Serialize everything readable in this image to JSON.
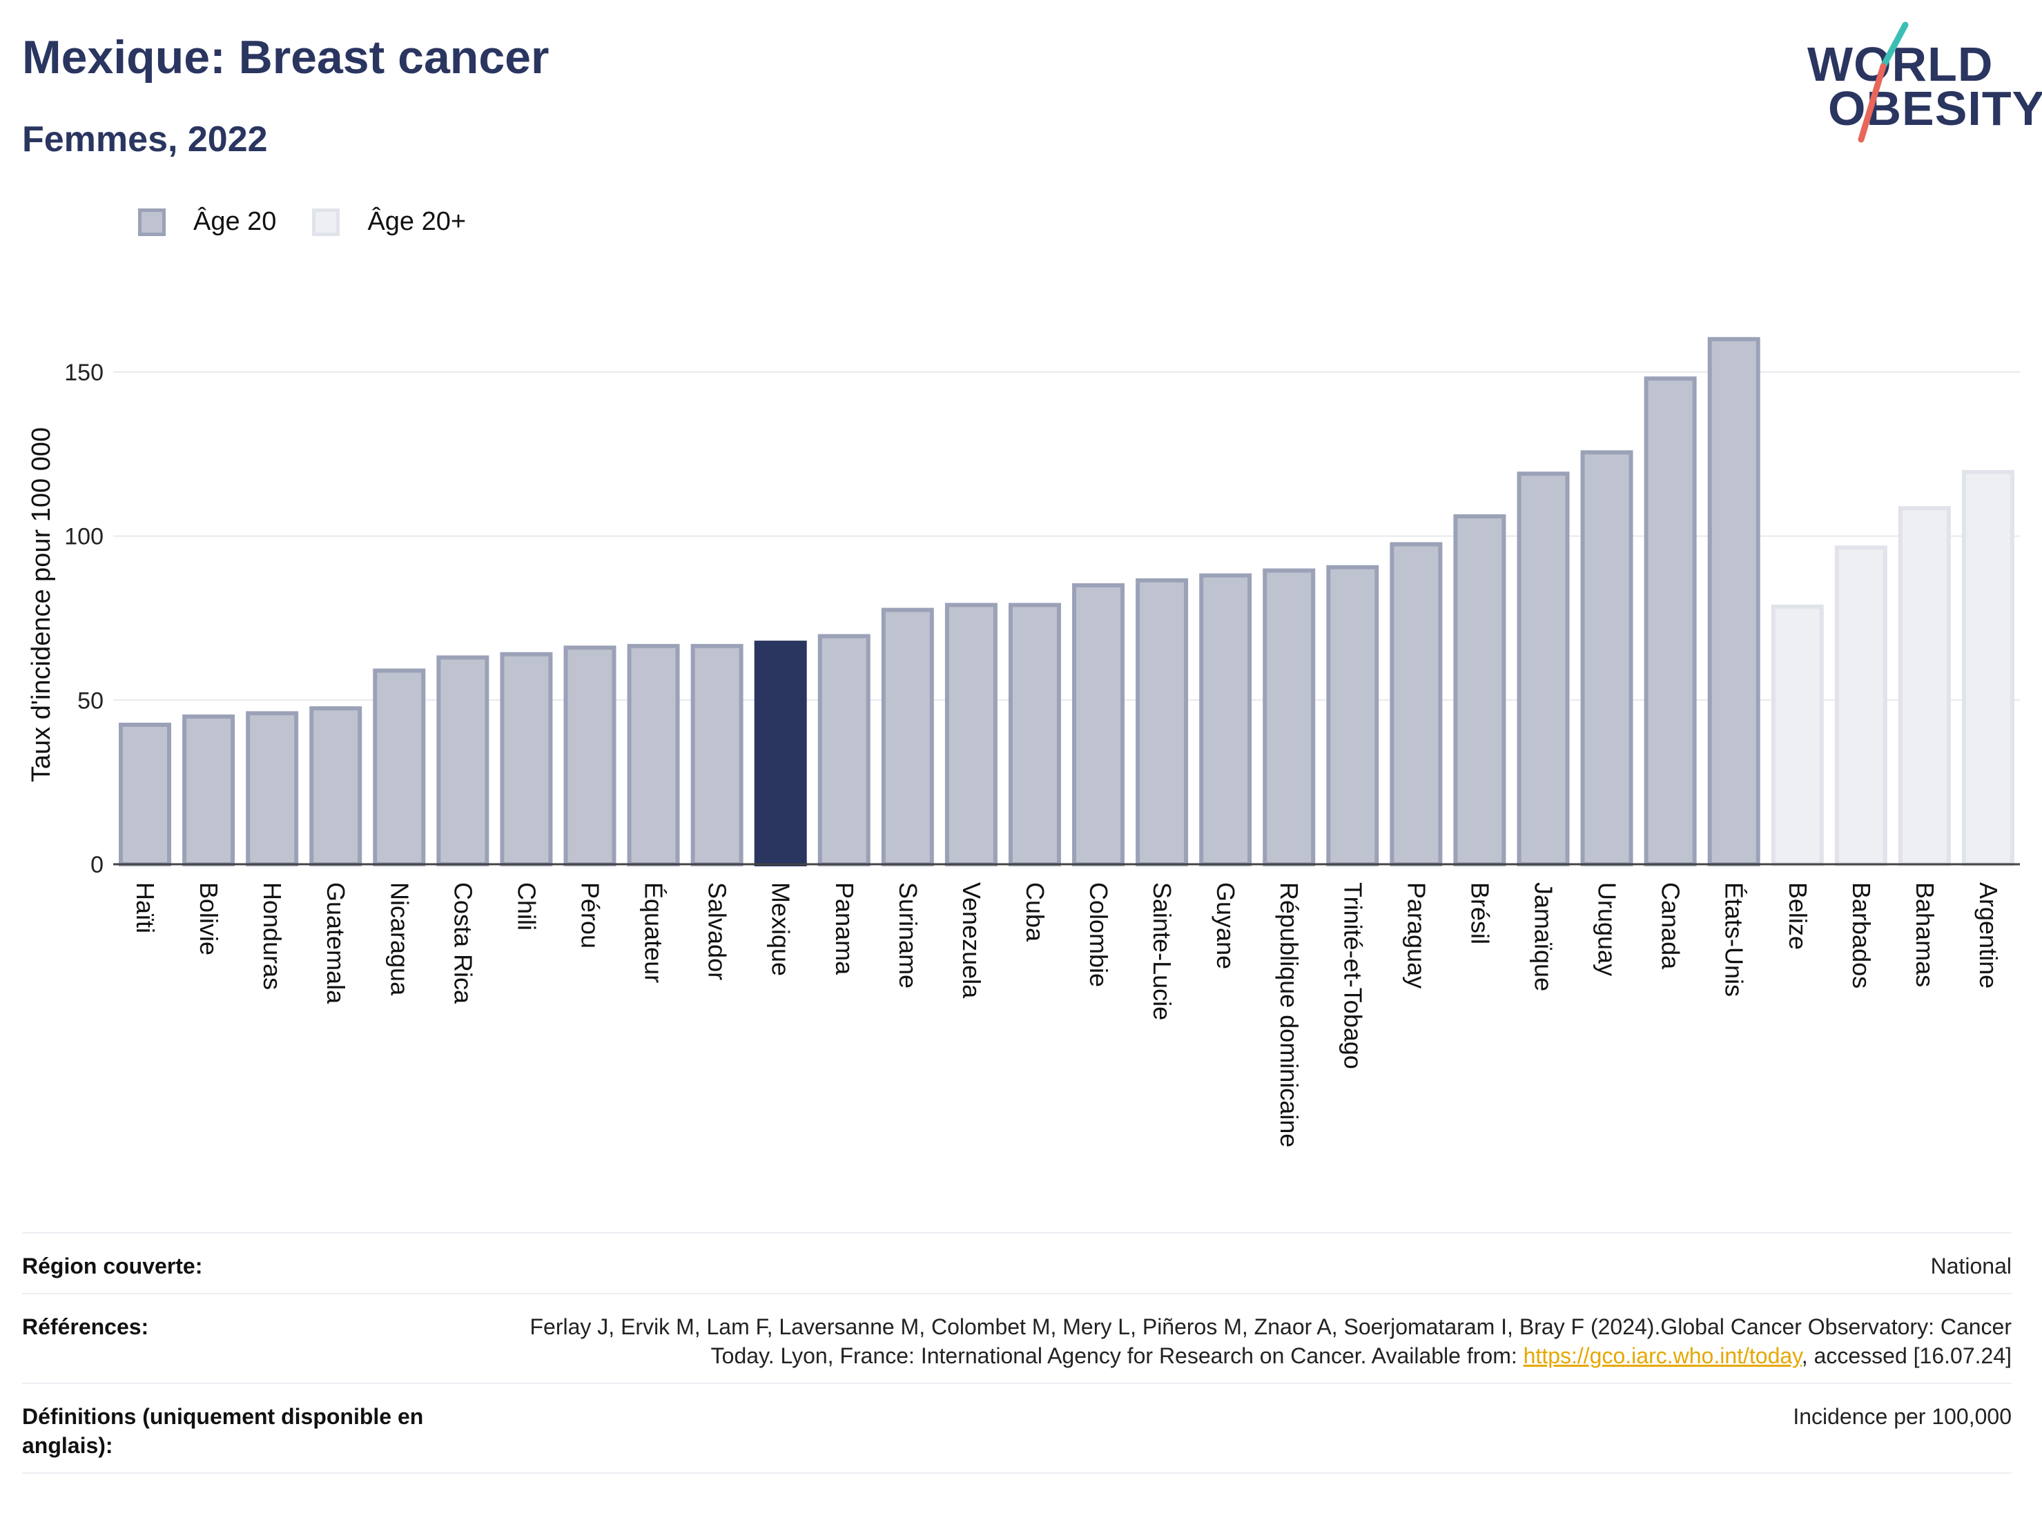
{
  "title": "Mexique: Breast cancer",
  "subtitle": "Femmes, 2022",
  "logo": {
    "line1": "WORLD",
    "line2": "OBESITY",
    "accent_teal": "#3bbfb5",
    "accent_red": "#e8665a"
  },
  "legend": [
    {
      "label": "Âge 20",
      "color": "#bfc3d0"
    },
    {
      "label": "Âge 20+",
      "color": "#eeeff3"
    }
  ],
  "colors": {
    "highlight": "#2a3560",
    "series_age20_fill": "#bfc3d0",
    "series_age20_stroke": "#9ba1b7",
    "series_age20plus_fill": "#eeeff3",
    "series_age20plus_stroke": "#e1e3ea"
  },
  "chart_data": {
    "type": "bar",
    "ylabel": "Taux d'incidence pour 100 000",
    "xlabel": "",
    "ylim": [
      0,
      175
    ],
    "yticks": [
      0,
      50,
      100,
      150
    ],
    "grid": true,
    "highlight": "Mexique",
    "categories": [
      "Haïti",
      "Bolivie",
      "Honduras",
      "Guatemala",
      "Nicaragua",
      "Costa Rica",
      "Chili",
      "Pérou",
      "Équateur",
      "Salvador",
      "Mexique",
      "Panama",
      "Suriname",
      "Venezuela",
      "Cuba",
      "Colombie",
      "Sainte-Lucie",
      "Guyane",
      "République dominicaine",
      "Trinité-et-Tobago",
      "Paraguay",
      "Brésil",
      "Jamaïque",
      "Uruguay",
      "Canada",
      "États-Unis",
      "Belize",
      "Barbados",
      "Bahamas",
      "Argentine"
    ],
    "values": [
      42.5,
      45,
      46,
      47.5,
      59,
      63,
      64,
      66,
      66.5,
      66.5,
      67.5,
      69.5,
      77.5,
      79,
      79,
      85,
      86.5,
      88,
      89.5,
      90.5,
      97.5,
      106,
      119,
      125.5,
      148,
      160,
      78.5,
      96.5,
      108.5,
      119.5
    ],
    "series_labels": [
      "Âge 20",
      "Âge 20",
      "Âge 20",
      "Âge 20",
      "Âge 20",
      "Âge 20",
      "Âge 20",
      "Âge 20",
      "Âge 20",
      "Âge 20",
      "Âge 20",
      "Âge 20",
      "Âge 20",
      "Âge 20",
      "Âge 20",
      "Âge 20",
      "Âge 20",
      "Âge 20",
      "Âge 20",
      "Âge 20",
      "Âge 20",
      "Âge 20",
      "Âge 20",
      "Âge 20",
      "Âge 20",
      "Âge 20",
      "Âge 20+",
      "Âge 20+",
      "Âge 20+",
      "Âge 20+"
    ]
  },
  "footer": {
    "region_label": "Région couverte:",
    "region_value": "National",
    "refs_label": "Références:",
    "refs_text_1": "Ferlay J, Ervik M, Lam F, Laversanne M, Colombet M, Mery L, Piñeros M, Znaor A, Soerjomataram I, Bray F (2024).Global Cancer Observatory: Cancer Today. Lyon, France: International Agency for Research on Cancer. Available from: ",
    "refs_link": "https://gco.iarc.who.int/today",
    "refs_text_2": ", accessed [16.07.24]",
    "defs_label": "Définitions (uniquement disponible en anglais):",
    "defs_value": "Incidence per 100,000"
  }
}
